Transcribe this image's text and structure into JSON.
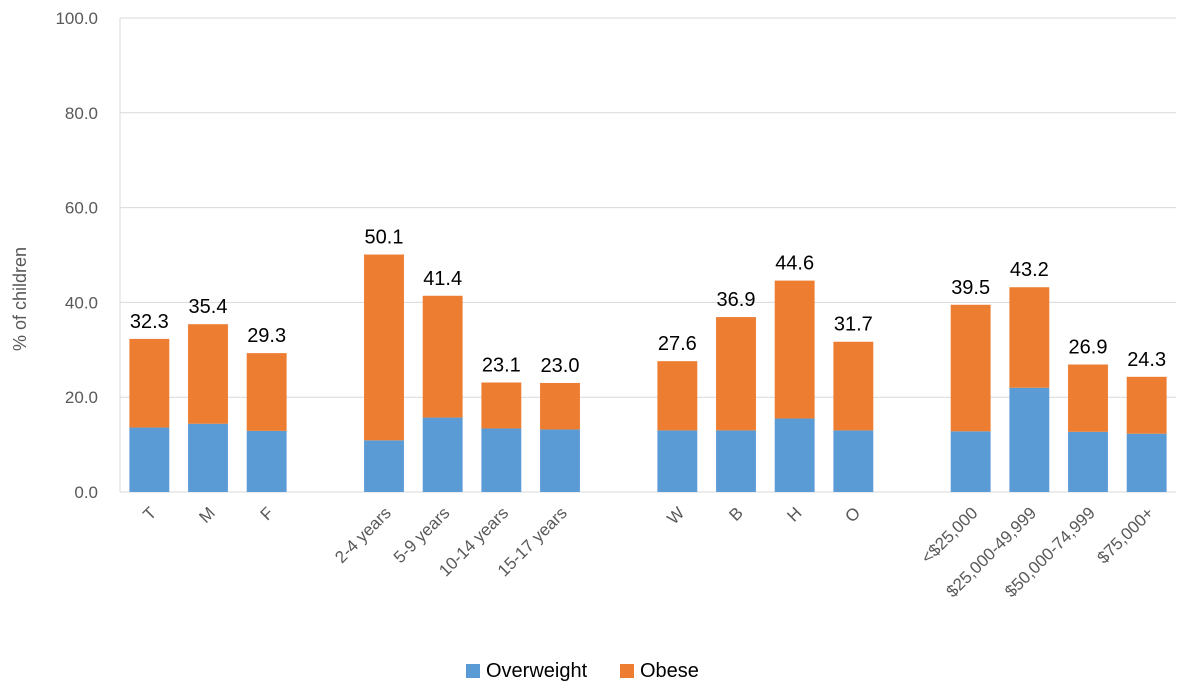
{
  "chart_data": {
    "type": "bar",
    "stacked": true,
    "ylabel": "% of children",
    "xlabel": "",
    "ylim": [
      0,
      100
    ],
    "yticks": [
      "0.0",
      "20.0",
      "40.0",
      "60.0",
      "80.0",
      "100.0"
    ],
    "grid": true,
    "legend_position": "bottom",
    "categories": [
      "T",
      "M",
      "F",
      "2-4 years",
      "5-9 years",
      "10-14 years",
      "15-17 years",
      "W",
      "B",
      "H",
      "O",
      "<$25,000",
      "$25,000-49,999",
      "$50,000-74,999",
      "$75,000+"
    ],
    "groups": [
      {
        "categories": [
          "T",
          "M",
          "F"
        ]
      },
      {
        "categories": [
          "2-4 years",
          "5-9 years",
          "10-14 years",
          "15-17 years"
        ]
      },
      {
        "categories": [
          "W",
          "B",
          "H",
          "O"
        ]
      },
      {
        "categories": [
          "<$25,000",
          "$25,000-49,999",
          "$50,000-74,999",
          "$75,000+"
        ]
      }
    ],
    "series": [
      {
        "name": "Overweight",
        "color": "#5b9bd5",
        "values": [
          13.6,
          14.4,
          12.9,
          10.9,
          15.7,
          13.4,
          13.2,
          13.0,
          13.0,
          15.5,
          13.0,
          12.8,
          22.0,
          12.7,
          12.3
        ]
      },
      {
        "name": "Obese",
        "color": "#ed7d31",
        "values": [
          18.7,
          21.0,
          16.4,
          39.2,
          25.7,
          9.7,
          9.8,
          14.6,
          23.9,
          29.1,
          18.7,
          26.7,
          21.2,
          14.2,
          12.0
        ]
      }
    ],
    "totals": [
      "32.3",
      "35.4",
      "29.3",
      "50.1",
      "41.4",
      "23.1",
      "23.0",
      "27.6",
      "36.9",
      "44.6",
      "31.7",
      "39.5",
      "43.2",
      "26.9",
      "24.3"
    ]
  }
}
